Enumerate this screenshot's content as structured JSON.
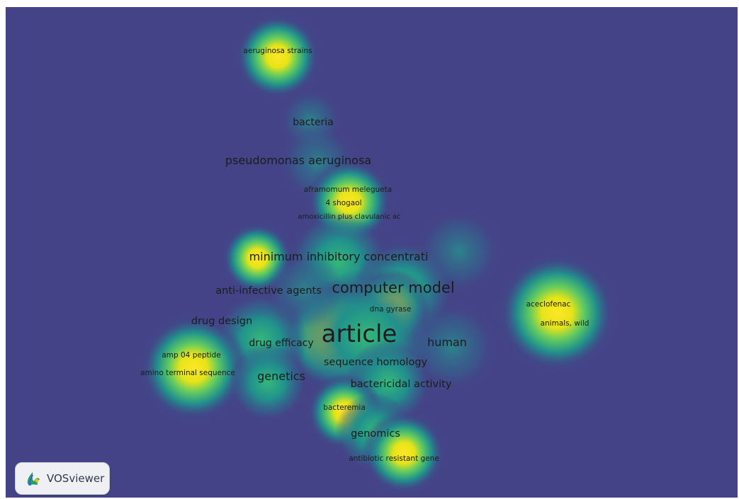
{
  "app": {
    "name": "VOSviewer"
  },
  "view": "density visualization",
  "colors": {
    "background": "#444387",
    "mid": "#21918c",
    "high": "#fde725"
  },
  "terms": [
    {
      "id": "aeruginosa-strains",
      "label": "aeruginosa strains",
      "density": 0.85
    },
    {
      "id": "bacteria",
      "label": "bacteria",
      "density": 0.4
    },
    {
      "id": "pseudomonas-aeruginosa",
      "label": "pseudomonas aeruginosa",
      "density": 0.45
    },
    {
      "id": "aframomum-melegueta",
      "label": "aframomum melegueta",
      "density": 0.9
    },
    {
      "id": "4-shogaol",
      "label": "4 shogaol",
      "density": 0.9
    },
    {
      "id": "amoxicillin-plus-clavulanic-ac",
      "label": "amoxicillin plus clavulanic ac",
      "density": 0.8
    },
    {
      "id": "minimum-inhibitory-concentrati",
      "label": "minimum inhibitory concentrati",
      "density": 0.7
    },
    {
      "id": "anti-infective-agents",
      "label": "anti-infective agents",
      "density": 0.5
    },
    {
      "id": "computer-model",
      "label": "computer model",
      "density": 0.6
    },
    {
      "id": "dna-gyrase",
      "label": "dna gyrase",
      "density": 0.9
    },
    {
      "id": "aceclofenac",
      "label": "aceclofenac",
      "density": 0.95
    },
    {
      "id": "animals-wild",
      "label": "animals, wild",
      "density": 0.95
    },
    {
      "id": "drug-design",
      "label": "drug design",
      "density": 0.5
    },
    {
      "id": "article",
      "label": "article",
      "density": 1.0
    },
    {
      "id": "drug-efficacy",
      "label": "drug efficacy",
      "density": 0.6
    },
    {
      "id": "human",
      "label": "human",
      "density": 0.55
    },
    {
      "id": "amp-04-peptide",
      "label": "amp 04 peptide",
      "density": 0.95
    },
    {
      "id": "sequence-homology",
      "label": "sequence homology",
      "density": 0.6
    },
    {
      "id": "amino-terminal-sequence",
      "label": "amino terminal sequence",
      "density": 0.95
    },
    {
      "id": "genetics",
      "label": "genetics",
      "density": 0.55
    },
    {
      "id": "bactericidal-activity",
      "label": "bactericidal activity",
      "density": 0.5
    },
    {
      "id": "bacteremia",
      "label": "bacteremia",
      "density": 0.9
    },
    {
      "id": "genomics",
      "label": "genomics",
      "density": 0.7
    },
    {
      "id": "antibiotic-resistant-gene",
      "label": "antibiotic resistant gene",
      "density": 0.9
    }
  ]
}
